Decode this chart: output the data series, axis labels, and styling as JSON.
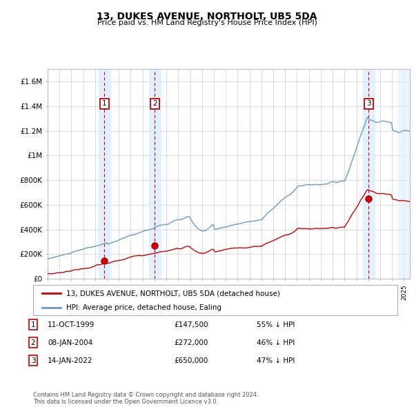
{
  "title": "13, DUKES AVENUE, NORTHOLT, UB5 5DA",
  "subtitle": "Price paid vs. HM Land Registry's House Price Index (HPI)",
  "footer": "Contains HM Land Registry data © Crown copyright and database right 2024.\nThis data is licensed under the Open Government Licence v3.0.",
  "legend_line1": "13, DUKES AVENUE, NORTHOLT, UB5 5DA (detached house)",
  "legend_line2": "HPI: Average price, detached house, Ealing",
  "transactions": [
    {
      "id": 1,
      "date": "11-OCT-1999",
      "price": 147500,
      "pct": "55%",
      "x": 1999.78
    },
    {
      "id": 2,
      "date": "08-JAN-2004",
      "price": 272000,
      "pct": "46%",
      "x": 2004.03
    },
    {
      "id": 3,
      "date": "14-JAN-2022",
      "price": 650000,
      "pct": "47%",
      "x": 2022.04
    }
  ],
  "hpi_color": "#6699cc",
  "red_color": "#cc0000",
  "vline_color": "#cc0000",
  "shade_color": "#ddeeff",
  "xlim": [
    1995.0,
    2025.5
  ],
  "ylim": [
    0,
    1700000
  ],
  "yticks": [
    0,
    200000,
    400000,
    600000,
    800000,
    1000000,
    1200000,
    1400000,
    1600000
  ],
  "ytick_labels": [
    "£0",
    "£200K",
    "£400K",
    "£600K",
    "£800K",
    "£1M",
    "£1.2M",
    "£1.4M",
    "£1.6M"
  ],
  "background_color": "#ffffff",
  "grid_color": "#cccccc",
  "title_fontsize": 10,
  "subtitle_fontsize": 8
}
